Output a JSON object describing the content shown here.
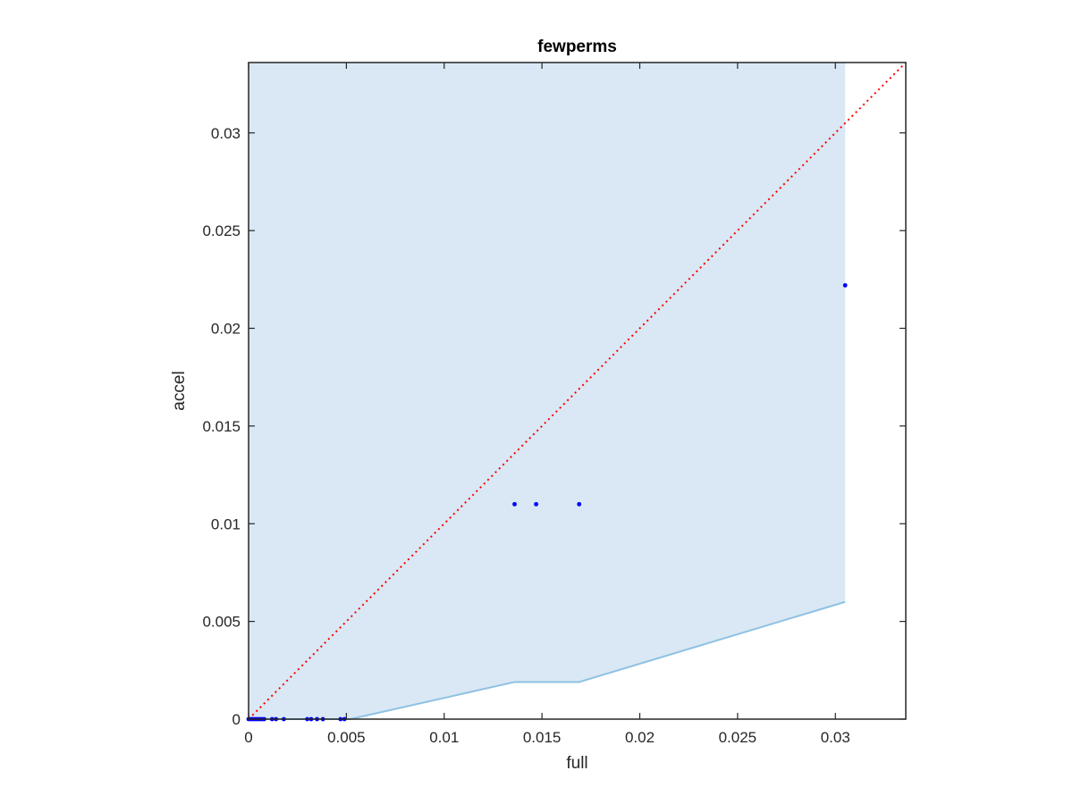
{
  "chart_data": {
    "type": "scatter",
    "title": "fewperms",
    "xlabel": "full",
    "ylabel": "accel",
    "xlim": [
      0,
      0.0336
    ],
    "ylim": [
      0,
      0.0336
    ],
    "x_ticks": [
      0,
      0.005,
      0.01,
      0.015,
      0.02,
      0.025,
      0.03
    ],
    "x_tick_labels": [
      "0",
      "0.005",
      "0.01",
      "0.015",
      "0.02",
      "0.025",
      "0.03"
    ],
    "y_ticks": [
      0,
      0.005,
      0.01,
      0.015,
      0.02,
      0.025,
      0.03
    ],
    "y_tick_labels": [
      "0",
      "0.005",
      "0.01",
      "0.015",
      "0.02",
      "0.025",
      "0.03"
    ],
    "grid": false,
    "points": {
      "x": [
        0.0,
        0.0001,
        0.0002,
        0.0003,
        0.0004,
        0.0005,
        0.0006,
        0.0007,
        0.0008,
        0.0012,
        0.0014,
        0.0018,
        0.003,
        0.0032,
        0.0035,
        0.0038,
        0.0047,
        0.0049,
        0.0136,
        0.0147,
        0.0169,
        0.0305
      ],
      "y": [
        0.0,
        0.0,
        0.0,
        0.0,
        0.0,
        0.0,
        0.0,
        0.0,
        0.0,
        0.0,
        0.0,
        0.0,
        0.0,
        0.0,
        0.0,
        0.0,
        0.0,
        0.0,
        0.011,
        0.011,
        0.011,
        0.0222
      ],
      "color": "#0000ff"
    },
    "reference_line": {
      "x": [
        0,
        0.0336
      ],
      "y": [
        0,
        0.0336
      ],
      "color": "#ff0000",
      "style": "dotted"
    },
    "shaded_region": {
      "upper": 0.0336,
      "lower_boundary": {
        "x": [
          0,
          0.0052,
          0.0136,
          0.0169,
          0.0305
        ],
        "y": [
          0,
          0,
          0.0019,
          0.0019,
          0.006
        ]
      },
      "x_range": [
        0,
        0.0305
      ],
      "fill_color": "#d9e8f4",
      "edge_color": "#8fc1e3"
    }
  }
}
